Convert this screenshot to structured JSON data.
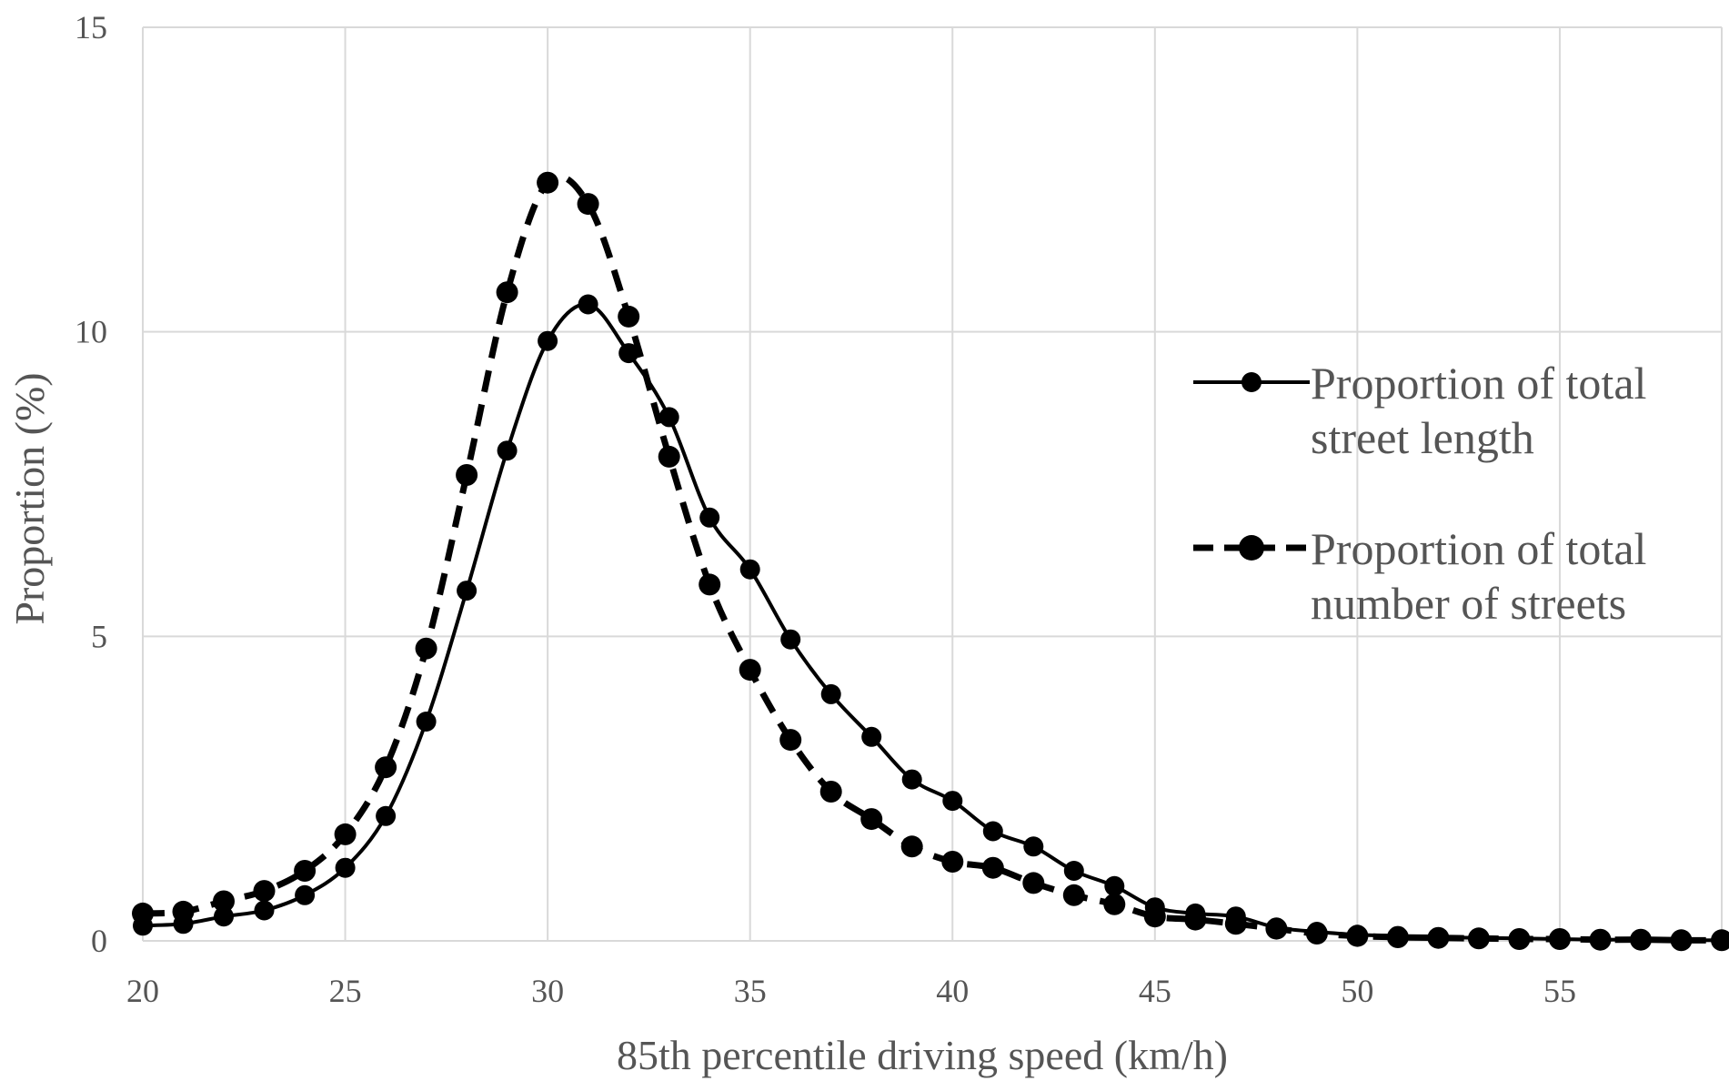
{
  "chart_data": {
    "type": "line",
    "xlabel": "85th percentile driving speed (km/h)",
    "ylabel": "Proportion (%)",
    "xlim": [
      20,
      59
    ],
    "ylim": [
      0,
      15
    ],
    "x_ticks": [
      "20",
      "25",
      "30",
      "35",
      "40",
      "45",
      "50",
      "55"
    ],
    "y_ticks": [
      "0",
      "5",
      "10",
      "15"
    ],
    "grid": true,
    "legend_position": "right",
    "x": [
      20,
      21,
      22,
      23,
      24,
      25,
      26,
      27,
      28,
      29,
      30,
      31,
      32,
      33,
      34,
      35,
      36,
      37,
      38,
      39,
      40,
      41,
      42,
      43,
      44,
      45,
      46,
      47,
      48,
      49,
      50,
      51,
      52,
      53,
      54,
      55,
      56,
      57,
      58,
      59
    ],
    "series": [
      {
        "name_lines": [
          "Proportion of total",
          "street length"
        ],
        "style": "solid",
        "color": "#000000",
        "values": [
          0.25,
          0.28,
          0.4,
          0.5,
          0.75,
          1.2,
          2.05,
          3.6,
          5.75,
          8.05,
          9.85,
          10.45,
          9.65,
          8.6,
          6.95,
          6.1,
          4.95,
          4.05,
          3.35,
          2.65,
          2.3,
          1.8,
          1.55,
          1.15,
          0.9,
          0.55,
          0.45,
          0.4,
          0.22,
          0.15,
          0.1,
          0.08,
          0.06,
          0.05,
          0.04,
          0.03,
          0.02,
          0.02,
          0.01,
          0.01
        ]
      },
      {
        "name_lines": [
          "Proportion of total",
          "number of streets"
        ],
        "style": "dashed",
        "color": "#000000",
        "values": [
          0.45,
          0.48,
          0.65,
          0.82,
          1.15,
          1.75,
          2.85,
          4.8,
          7.65,
          10.65,
          12.45,
          12.1,
          10.25,
          7.95,
          5.85,
          4.45,
          3.3,
          2.45,
          2.0,
          1.55,
          1.3,
          1.2,
          0.95,
          0.75,
          0.6,
          0.4,
          0.35,
          0.28,
          0.2,
          0.12,
          0.08,
          0.06,
          0.05,
          0.04,
          0.03,
          0.03,
          0.02,
          0.02,
          0.01,
          0.01
        ]
      }
    ]
  }
}
